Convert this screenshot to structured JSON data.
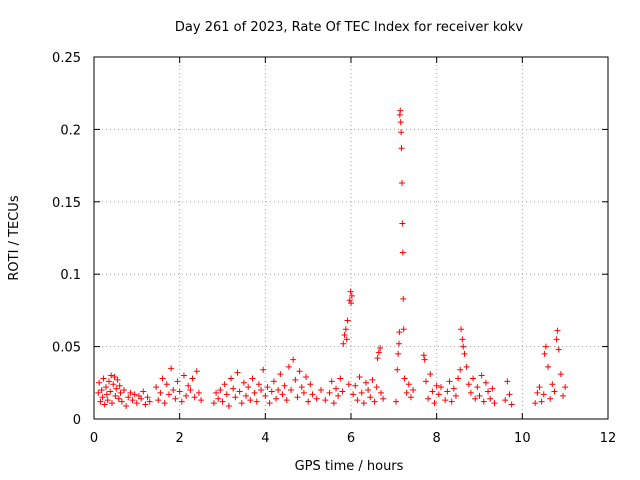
{
  "chart_data": {
    "type": "scatter",
    "title": "Day 261 of 2023, Rate Of TEC Index for receiver kokv",
    "xlabel": "GPS time / hours",
    "ylabel": "ROTI / TECUs",
    "xlim": [
      0,
      12
    ],
    "ylim": [
      0,
      0.25
    ],
    "xticks": [
      0,
      2,
      4,
      6,
      8,
      10,
      12
    ],
    "xtick_labels": [
      "0",
      "2",
      "4",
      "6",
      "8",
      "10",
      "12"
    ],
    "yticks": [
      0,
      0.05,
      0.1,
      0.15,
      0.2,
      0.25
    ],
    "ytick_labels": [
      "0",
      "0.05",
      "0.1",
      "0.15",
      "0.2",
      "0.25"
    ],
    "grid": true,
    "marker": "+",
    "color": "#ff0000",
    "series": [
      {
        "name": "ROTI",
        "points": [
          [
            0.1,
            0.018
          ],
          [
            0.12,
            0.025
          ],
          [
            0.15,
            0.012
          ],
          [
            0.18,
            0.02
          ],
          [
            0.2,
            0.015
          ],
          [
            0.22,
            0.028
          ],
          [
            0.25,
            0.01
          ],
          [
            0.28,
            0.022
          ],
          [
            0.3,
            0.017
          ],
          [
            0.32,
            0.013
          ],
          [
            0.35,
            0.026
          ],
          [
            0.38,
            0.019
          ],
          [
            0.4,
            0.03
          ],
          [
            0.42,
            0.011
          ],
          [
            0.45,
            0.024
          ],
          [
            0.48,
            0.029
          ],
          [
            0.5,
            0.016
          ],
          [
            0.52,
            0.021
          ],
          [
            0.55,
            0.027
          ],
          [
            0.58,
            0.014
          ],
          [
            0.6,
            0.023
          ],
          [
            0.62,
            0.018
          ],
          [
            0.65,
            0.012
          ],
          [
            0.7,
            0.02
          ],
          [
            0.75,
            0.009
          ],
          [
            0.8,
            0.015
          ],
          [
            0.85,
            0.018
          ],
          [
            0.9,
            0.013
          ],
          [
            0.95,
            0.017
          ],
          [
            1.0,
            0.011
          ],
          [
            1.05,
            0.016
          ],
          [
            1.1,
            0.014
          ],
          [
            1.15,
            0.019
          ],
          [
            1.2,
            0.01
          ],
          [
            1.25,
            0.015
          ],
          [
            1.3,
            0.012
          ],
          [
            1.45,
            0.022
          ],
          [
            1.5,
            0.013
          ],
          [
            1.55,
            0.018
          ],
          [
            1.6,
            0.028
          ],
          [
            1.65,
            0.011
          ],
          [
            1.7,
            0.024
          ],
          [
            1.75,
            0.017
          ],
          [
            1.8,
            0.035
          ],
          [
            1.85,
            0.02
          ],
          [
            1.9,
            0.014
          ],
          [
            1.95,
            0.026
          ],
          [
            2.0,
            0.019
          ],
          [
            2.05,
            0.012
          ],
          [
            2.1,
            0.03
          ],
          [
            2.15,
            0.016
          ],
          [
            2.2,
            0.023
          ],
          [
            2.25,
            0.02
          ],
          [
            2.3,
            0.028
          ],
          [
            2.35,
            0.015
          ],
          [
            2.4,
            0.033
          ],
          [
            2.45,
            0.018
          ],
          [
            2.5,
            0.013
          ],
          [
            2.8,
            0.011
          ],
          [
            2.85,
            0.018
          ],
          [
            2.9,
            0.014
          ],
          [
            2.95,
            0.02
          ],
          [
            3.0,
            0.012
          ],
          [
            3.05,
            0.024
          ],
          [
            3.1,
            0.017
          ],
          [
            3.15,
            0.009
          ],
          [
            3.2,
            0.028
          ],
          [
            3.25,
            0.021
          ],
          [
            3.3,
            0.015
          ],
          [
            3.35,
            0.032
          ],
          [
            3.4,
            0.019
          ],
          [
            3.45,
            0.011
          ],
          [
            3.5,
            0.025
          ],
          [
            3.55,
            0.016
          ],
          [
            3.6,
            0.022
          ],
          [
            3.65,
            0.013
          ],
          [
            3.7,
            0.028
          ],
          [
            3.75,
            0.018
          ],
          [
            3.8,
            0.012
          ],
          [
            3.85,
            0.024
          ],
          [
            3.9,
            0.02
          ],
          [
            3.95,
            0.034
          ],
          [
            4.0,
            0.016
          ],
          [
            4.05,
            0.022
          ],
          [
            4.1,
            0.011
          ],
          [
            4.15,
            0.019
          ],
          [
            4.2,
            0.026
          ],
          [
            4.25,
            0.014
          ],
          [
            4.3,
            0.02
          ],
          [
            4.35,
            0.031
          ],
          [
            4.4,
            0.017
          ],
          [
            4.45,
            0.023
          ],
          [
            4.5,
            0.013
          ],
          [
            4.55,
            0.036
          ],
          [
            4.6,
            0.02
          ],
          [
            4.65,
            0.041
          ],
          [
            4.7,
            0.027
          ],
          [
            4.75,
            0.015
          ],
          [
            4.8,
            0.033
          ],
          [
            4.85,
            0.022
          ],
          [
            4.9,
            0.018
          ],
          [
            4.95,
            0.029
          ],
          [
            5.0,
            0.012
          ],
          [
            5.05,
            0.024
          ],
          [
            5.1,
            0.017
          ],
          [
            5.2,
            0.014
          ],
          [
            5.3,
            0.02
          ],
          [
            5.4,
            0.013
          ],
          [
            5.5,
            0.018
          ],
          [
            5.55,
            0.026
          ],
          [
            5.6,
            0.011
          ],
          [
            5.65,
            0.021
          ],
          [
            5.7,
            0.016
          ],
          [
            5.75,
            0.028
          ],
          [
            5.8,
            0.019
          ],
          [
            5.82,
            0.052
          ],
          [
            5.85,
            0.058
          ],
          [
            5.88,
            0.062
          ],
          [
            5.9,
            0.055
          ],
          [
            5.92,
            0.068
          ],
          [
            5.95,
            0.024
          ],
          [
            5.97,
            0.082
          ],
          [
            5.99,
            0.088
          ],
          [
            6.0,
            0.08
          ],
          [
            6.02,
            0.085
          ],
          [
            6.05,
            0.017
          ],
          [
            6.1,
            0.023
          ],
          [
            6.15,
            0.013
          ],
          [
            6.2,
            0.029
          ],
          [
            6.25,
            0.018
          ],
          [
            6.3,
            0.011
          ],
          [
            6.35,
            0.025
          ],
          [
            6.4,
            0.02
          ],
          [
            6.45,
            0.015
          ],
          [
            6.5,
            0.027
          ],
          [
            6.55,
            0.012
          ],
          [
            6.6,
            0.022
          ],
          [
            6.62,
            0.042
          ],
          [
            6.65,
            0.046
          ],
          [
            6.68,
            0.049
          ],
          [
            6.7,
            0.018
          ],
          [
            6.75,
            0.014
          ],
          [
            7.05,
            0.012
          ],
          [
            7.08,
            0.034
          ],
          [
            7.1,
            0.045
          ],
          [
            7.12,
            0.052
          ],
          [
            7.13,
            0.06
          ],
          [
            7.14,
            0.21
          ],
          [
            7.15,
            0.213
          ],
          [
            7.16,
            0.205
          ],
          [
            7.17,
            0.198
          ],
          [
            7.18,
            0.187
          ],
          [
            7.19,
            0.163
          ],
          [
            7.2,
            0.135
          ],
          [
            7.21,
            0.115
          ],
          [
            7.22,
            0.083
          ],
          [
            7.23,
            0.062
          ],
          [
            7.25,
            0.028
          ],
          [
            7.3,
            0.018
          ],
          [
            7.35,
            0.024
          ],
          [
            7.4,
            0.015
          ],
          [
            7.45,
            0.02
          ],
          [
            7.7,
            0.044
          ],
          [
            7.72,
            0.041
          ],
          [
            7.75,
            0.026
          ],
          [
            7.8,
            0.014
          ],
          [
            7.85,
            0.031
          ],
          [
            7.9,
            0.019
          ],
          [
            7.95,
            0.011
          ],
          [
            8.0,
            0.023
          ],
          [
            8.05,
            0.017
          ],
          [
            8.1,
            0.022
          ],
          [
            8.2,
            0.013
          ],
          [
            8.25,
            0.019
          ],
          [
            8.3,
            0.026
          ],
          [
            8.35,
            0.012
          ],
          [
            8.4,
            0.021
          ],
          [
            8.45,
            0.016
          ],
          [
            8.5,
            0.028
          ],
          [
            8.55,
            0.034
          ],
          [
            8.57,
            0.062
          ],
          [
            8.6,
            0.055
          ],
          [
            8.62,
            0.05
          ],
          [
            8.65,
            0.045
          ],
          [
            8.7,
            0.036
          ],
          [
            8.75,
            0.024
          ],
          [
            8.8,
            0.018
          ],
          [
            8.85,
            0.028
          ],
          [
            8.9,
            0.014
          ],
          [
            8.95,
            0.022
          ],
          [
            9.0,
            0.016
          ],
          [
            9.05,
            0.03
          ],
          [
            9.1,
            0.012
          ],
          [
            9.15,
            0.025
          ],
          [
            9.2,
            0.019
          ],
          [
            9.25,
            0.014
          ],
          [
            9.3,
            0.021
          ],
          [
            9.35,
            0.011
          ],
          [
            9.6,
            0.013
          ],
          [
            9.65,
            0.026
          ],
          [
            9.7,
            0.017
          ],
          [
            9.75,
            0.01
          ],
          [
            10.3,
            0.011
          ],
          [
            10.35,
            0.018
          ],
          [
            10.4,
            0.022
          ],
          [
            10.45,
            0.012
          ],
          [
            10.5,
            0.017
          ],
          [
            10.52,
            0.045
          ],
          [
            10.55,
            0.05
          ],
          [
            10.6,
            0.036
          ],
          [
            10.65,
            0.014
          ],
          [
            10.7,
            0.024
          ],
          [
            10.75,
            0.019
          ],
          [
            10.8,
            0.055
          ],
          [
            10.82,
            0.061
          ],
          [
            10.85,
            0.048
          ],
          [
            10.9,
            0.031
          ],
          [
            10.95,
            0.016
          ],
          [
            11.0,
            0.022
          ]
        ]
      }
    ]
  }
}
